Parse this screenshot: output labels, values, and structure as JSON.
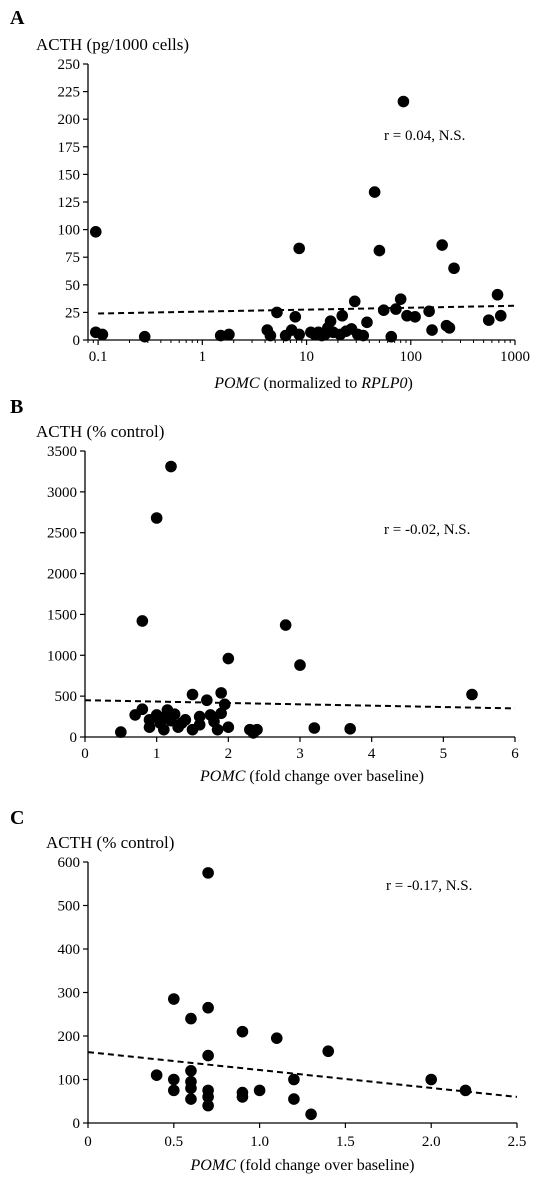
{
  "chart_data": [
    {
      "type": "scatter",
      "panel": "A",
      "ylabel": "ACTH (pg/1000 cells)",
      "xlabel_parts": [
        {
          "text": "POMC",
          "italic": true
        },
        {
          "text": " (normalized to ",
          "italic": false
        },
        {
          "text": "RPLP0",
          "italic": true
        },
        {
          "text": ")",
          "italic": false
        }
      ],
      "xscale": "log",
      "xlim": [
        0.08,
        1000
      ],
      "ylim": [
        0,
        250
      ],
      "xticks": [
        0.1,
        1,
        10,
        100,
        1000
      ],
      "xtick_labels": [
        "0.1",
        "1",
        "10",
        "100",
        "1000"
      ],
      "yticks": [
        0,
        25,
        50,
        75,
        100,
        125,
        150,
        175,
        200,
        225,
        250
      ],
      "ytick_labels": [
        "0",
        "25",
        "50",
        "75",
        "100",
        "125",
        "150",
        "175",
        "200",
        "225",
        "250"
      ],
      "annotation": "r = 0.04, N.S.",
      "trend": {
        "x": [
          0.1,
          1000
        ],
        "y": [
          24,
          31
        ]
      },
      "points": [
        {
          "x": 0.095,
          "y": 98
        },
        {
          "x": 0.095,
          "y": 7
        },
        {
          "x": 0.11,
          "y": 5
        },
        {
          "x": 0.28,
          "y": 3
        },
        {
          "x": 1.5,
          "y": 4
        },
        {
          "x": 1.8,
          "y": 5
        },
        {
          "x": 4.2,
          "y": 9
        },
        {
          "x": 4.5,
          "y": 4
        },
        {
          "x": 5.2,
          "y": 25
        },
        {
          "x": 6.3,
          "y": 4
        },
        {
          "x": 7.2,
          "y": 9
        },
        {
          "x": 7.8,
          "y": 21
        },
        {
          "x": 8.5,
          "y": 83
        },
        {
          "x": 8.5,
          "y": 5
        },
        {
          "x": 11,
          "y": 7
        },
        {
          "x": 12,
          "y": 5
        },
        {
          "x": 13,
          "y": 7
        },
        {
          "x": 14,
          "y": 4
        },
        {
          "x": 15,
          "y": 5
        },
        {
          "x": 16,
          "y": 11
        },
        {
          "x": 17,
          "y": 17
        },
        {
          "x": 18,
          "y": 7
        },
        {
          "x": 21,
          "y": 5
        },
        {
          "x": 22,
          "y": 22
        },
        {
          "x": 24,
          "y": 8
        },
        {
          "x": 27,
          "y": 10
        },
        {
          "x": 29,
          "y": 35
        },
        {
          "x": 31,
          "y": 5
        },
        {
          "x": 35,
          "y": 4
        },
        {
          "x": 38,
          "y": 16
        },
        {
          "x": 45,
          "y": 134
        },
        {
          "x": 50,
          "y": 81
        },
        {
          "x": 55,
          "y": 27
        },
        {
          "x": 65,
          "y": 3
        },
        {
          "x": 72,
          "y": 28
        },
        {
          "x": 80,
          "y": 37
        },
        {
          "x": 85,
          "y": 216
        },
        {
          "x": 92,
          "y": 22
        },
        {
          "x": 110,
          "y": 21
        },
        {
          "x": 150,
          "y": 26
        },
        {
          "x": 160,
          "y": 9
        },
        {
          "x": 200,
          "y": 86
        },
        {
          "x": 220,
          "y": 13
        },
        {
          "x": 235,
          "y": 11
        },
        {
          "x": 260,
          "y": 65
        },
        {
          "x": 560,
          "y": 18
        },
        {
          "x": 680,
          "y": 41
        },
        {
          "x": 730,
          "y": 22
        }
      ]
    },
    {
      "type": "scatter",
      "panel": "B",
      "ylabel": "ACTH (% control)",
      "xlabel_parts": [
        {
          "text": "POMC",
          "italic": true
        },
        {
          "text": " (fold change over baseline)",
          "italic": false
        }
      ],
      "xscale": "linear",
      "xlim": [
        0,
        6
      ],
      "ylim": [
        0,
        3500
      ],
      "xticks": [
        0,
        1,
        2,
        3,
        4,
        5,
        6
      ],
      "xtick_labels": [
        "0",
        "1",
        "2",
        "3",
        "4",
        "5",
        "6"
      ],
      "yticks": [
        0,
        500,
        1000,
        1500,
        2000,
        2500,
        3000,
        3500
      ],
      "ytick_labels": [
        "0",
        "500",
        "1000",
        "1500",
        "2000",
        "2500",
        "3000",
        "3500"
      ],
      "annotation": "r = -0.02, N.S.",
      "trend": {
        "x": [
          0,
          6
        ],
        "y": [
          450,
          350
        ]
      },
      "points": [
        {
          "x": 0.5,
          "y": 60
        },
        {
          "x": 0.7,
          "y": 270
        },
        {
          "x": 0.8,
          "y": 1420
        },
        {
          "x": 0.8,
          "y": 340
        },
        {
          "x": 0.9,
          "y": 120
        },
        {
          "x": 0.9,
          "y": 210
        },
        {
          "x": 1.0,
          "y": 2680
        },
        {
          "x": 1.0,
          "y": 270
        },
        {
          "x": 1.05,
          "y": 170
        },
        {
          "x": 1.1,
          "y": 240
        },
        {
          "x": 1.1,
          "y": 90
        },
        {
          "x": 1.15,
          "y": 330
        },
        {
          "x": 1.2,
          "y": 3310
        },
        {
          "x": 1.2,
          "y": 200
        },
        {
          "x": 1.25,
          "y": 280
        },
        {
          "x": 1.3,
          "y": 120
        },
        {
          "x": 1.35,
          "y": 170
        },
        {
          "x": 1.4,
          "y": 210
        },
        {
          "x": 1.5,
          "y": 520
        },
        {
          "x": 1.5,
          "y": 90
        },
        {
          "x": 1.6,
          "y": 250
        },
        {
          "x": 1.6,
          "y": 150
        },
        {
          "x": 1.7,
          "y": 450
        },
        {
          "x": 1.75,
          "y": 270
        },
        {
          "x": 1.8,
          "y": 190
        },
        {
          "x": 1.85,
          "y": 90
        },
        {
          "x": 1.9,
          "y": 540
        },
        {
          "x": 1.9,
          "y": 290
        },
        {
          "x": 1.95,
          "y": 400
        },
        {
          "x": 2.0,
          "y": 960
        },
        {
          "x": 2.0,
          "y": 120
        },
        {
          "x": 2.3,
          "y": 90
        },
        {
          "x": 2.35,
          "y": 50
        },
        {
          "x": 2.4,
          "y": 90
        },
        {
          "x": 2.8,
          "y": 1370
        },
        {
          "x": 3.0,
          "y": 880
        },
        {
          "x": 3.2,
          "y": 110
        },
        {
          "x": 3.7,
          "y": 100
        },
        {
          "x": 5.4,
          "y": 520
        }
      ]
    },
    {
      "type": "scatter",
      "panel": "C",
      "ylabel": "ACTH (% control)",
      "xlabel_parts": [
        {
          "text": "POMC",
          "italic": true
        },
        {
          "text": " (fold change over baseline)",
          "italic": false
        }
      ],
      "xscale": "linear",
      "xlim": [
        0,
        2.5
      ],
      "ylim": [
        0,
        600
      ],
      "xticks": [
        0,
        0.5,
        1.0,
        1.5,
        2.0,
        2.5
      ],
      "xtick_labels": [
        "0",
        "0.5",
        "1.0",
        "1.5",
        "2.0",
        "2.5"
      ],
      "yticks": [
        0,
        100,
        200,
        300,
        400,
        500,
        600
      ],
      "ytick_labels": [
        "0",
        "100",
        "200",
        "300",
        "400",
        "500",
        "600"
      ],
      "annotation": "r = -0.17, N.S.",
      "trend": {
        "x": [
          0,
          2.5
        ],
        "y": [
          163,
          60
        ]
      },
      "points": [
        {
          "x": 0.4,
          "y": 110
        },
        {
          "x": 0.5,
          "y": 285
        },
        {
          "x": 0.5,
          "y": 100
        },
        {
          "x": 0.5,
          "y": 75
        },
        {
          "x": 0.6,
          "y": 240
        },
        {
          "x": 0.6,
          "y": 120
        },
        {
          "x": 0.6,
          "y": 95
        },
        {
          "x": 0.6,
          "y": 80
        },
        {
          "x": 0.6,
          "y": 55
        },
        {
          "x": 0.7,
          "y": 575
        },
        {
          "x": 0.7,
          "y": 265
        },
        {
          "x": 0.7,
          "y": 155
        },
        {
          "x": 0.7,
          "y": 75
        },
        {
          "x": 0.7,
          "y": 60
        },
        {
          "x": 0.7,
          "y": 40
        },
        {
          "x": 0.9,
          "y": 210
        },
        {
          "x": 0.9,
          "y": 70
        },
        {
          "x": 0.9,
          "y": 60
        },
        {
          "x": 1.0,
          "y": 75
        },
        {
          "x": 1.1,
          "y": 195
        },
        {
          "x": 1.2,
          "y": 100
        },
        {
          "x": 1.2,
          "y": 55
        },
        {
          "x": 1.3,
          "y": 20
        },
        {
          "x": 1.4,
          "y": 165
        },
        {
          "x": 2.0,
          "y": 100
        },
        {
          "x": 2.2,
          "y": 75
        }
      ]
    }
  ]
}
